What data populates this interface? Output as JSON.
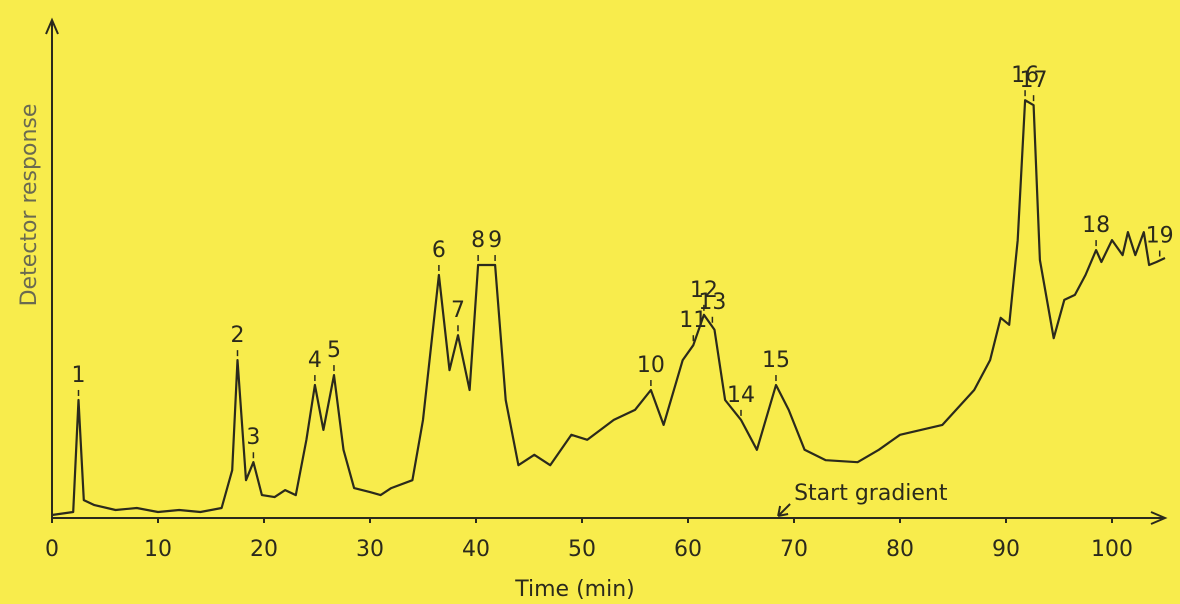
{
  "chart_data": {
    "type": "line",
    "x_label": "Time (min)",
    "y_label": "Detector response",
    "xlim": [
      0,
      105
    ],
    "ylim": [
      0,
      100
    ],
    "xticks": [
      0,
      10,
      20,
      30,
      40,
      50,
      60,
      70,
      80,
      90,
      100
    ],
    "color": "#2b2a1c",
    "x": [
      0,
      2,
      2.5,
      3,
      4,
      6,
      8,
      10,
      12,
      14,
      16,
      17,
      17.5,
      18.3,
      19,
      19.8,
      21,
      22,
      23,
      24,
      24.8,
      25.6,
      26.6,
      27.5,
      28.5,
      30,
      31,
      32,
      34,
      35,
      36.5,
      37.5,
      38.3,
      39.4,
      40.2,
      41.8,
      42.8,
      44,
      45.5,
      47,
      49,
      50.5,
      53,
      55,
      56.5,
      57.7,
      59.5,
      60.5,
      61.5,
      62.5,
      63.5,
      65,
      66.5,
      68.3,
      69.5,
      71,
      73,
      76,
      78,
      80,
      84,
      87,
      88.5,
      89.5,
      90.3,
      91.1,
      91.8,
      92.6,
      93.2,
      94.5,
      95.5,
      96.5,
      97.5,
      98.5,
      99,
      100,
      101,
      101.5,
      102.2,
      103,
      103.5,
      104.2,
      105
    ],
    "values": [
      0.6,
      1.2,
      23.7,
      3.6,
      2.6,
      1.6,
      2.0,
      1.2,
      1.6,
      1.2,
      2.0,
      9.6,
      31.7,
      7.6,
      11.2,
      4.6,
      4.2,
      5.6,
      4.6,
      15.7,
      26.7,
      17.7,
      28.7,
      13.7,
      6.0,
      5.2,
      4.6,
      6.0,
      7.6,
      19.7,
      48.8,
      29.7,
      36.7,
      25.7,
      50.8,
      50.8,
      23.7,
      10.6,
      12.7,
      10.6,
      16.7,
      15.7,
      19.7,
      21.7,
      25.7,
      18.7,
      31.7,
      34.7,
      40.8,
      37.8,
      23.7,
      19.7,
      13.7,
      26.7,
      21.7,
      13.7,
      11.6,
      11.2,
      13.7,
      16.7,
      18.7,
      25.7,
      31.7,
      40.2,
      38.8,
      55.8,
      83.9,
      82.9,
      51.8,
      36.1,
      43.8,
      44.8,
      48.8,
      53.8,
      51.4,
      55.8,
      52.8,
      57.4,
      52.8,
      57.4,
      50.8,
      51.4,
      52.2
    ],
    "peaks": [
      {
        "label": "1",
        "x": 2.5
      },
      {
        "label": "2",
        "x": 17.5
      },
      {
        "label": "3",
        "x": 19
      },
      {
        "label": "4",
        "x": 24.8
      },
      {
        "label": "5",
        "x": 26.6
      },
      {
        "label": "6",
        "x": 36.5
      },
      {
        "label": "7",
        "x": 38.3
      },
      {
        "label": "8",
        "x": 40.2
      },
      {
        "label": "9",
        "x": 41.8
      },
      {
        "label": "10",
        "x": 56.5
      },
      {
        "label": "11",
        "x": 60.5
      },
      {
        "label": "12",
        "x": 61.5
      },
      {
        "label": "13",
        "x": 62.3
      },
      {
        "label": "14",
        "x": 65
      },
      {
        "label": "15",
        "x": 68.3
      },
      {
        "label": "16",
        "x": 91.8
      },
      {
        "label": "17",
        "x": 92.6
      },
      {
        "label": "18",
        "x": 98.5
      },
      {
        "label": "19",
        "x": 104.5
      }
    ],
    "annotation": {
      "text": "Start gradient",
      "x": 68.5
    }
  }
}
